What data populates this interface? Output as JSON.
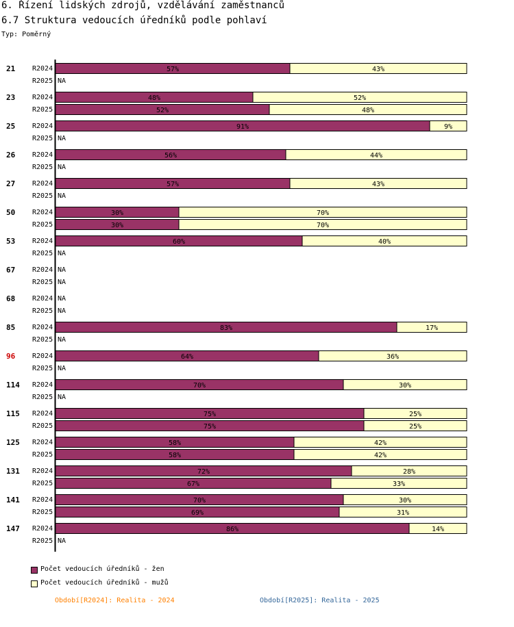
{
  "header": {
    "title": "6. Řízení lidských zdrojů, vzdělávání zaměstnanců",
    "subtitle": "6.7 Struktura vedoucích úředníků podle pohlaví",
    "type_label": "Typ: Poměrný"
  },
  "colors": {
    "women": "#993366",
    "men": "#ffffcc",
    "highlight": "#cc0000",
    "period_2024": "#ff8000",
    "period_2025": "#336699",
    "axis": "#000000"
  },
  "chart_data": {
    "type": "bar",
    "orientation": "horizontal",
    "stacked": true,
    "normalized": true,
    "title": "6.7 Struktura vedoucích úředníků podle pohlaví",
    "xlim": [
      0,
      100
    ],
    "na_label": "NA",
    "highlight_group": "96",
    "series_names": [
      "Počet vedoucích úředníků - žen",
      "Počet vedoucích úředníků - mužů"
    ],
    "groups": [
      {
        "id": "21",
        "rows": [
          {
            "period": "R2024",
            "values": [
              57,
              43
            ]
          },
          {
            "period": "R2025",
            "values": null
          }
        ]
      },
      {
        "id": "23",
        "rows": [
          {
            "period": "R2024",
            "values": [
              48,
              52
            ]
          },
          {
            "period": "R2025",
            "values": [
              52,
              48
            ]
          }
        ]
      },
      {
        "id": "25",
        "rows": [
          {
            "period": "R2024",
            "values": [
              91,
              9
            ]
          },
          {
            "period": "R2025",
            "values": null
          }
        ]
      },
      {
        "id": "26",
        "rows": [
          {
            "period": "R2024",
            "values": [
              56,
              44
            ]
          },
          {
            "period": "R2025",
            "values": null
          }
        ]
      },
      {
        "id": "27",
        "rows": [
          {
            "period": "R2024",
            "values": [
              57,
              43
            ]
          },
          {
            "period": "R2025",
            "values": null
          }
        ]
      },
      {
        "id": "50",
        "rows": [
          {
            "period": "R2024",
            "values": [
              30,
              70
            ]
          },
          {
            "period": "R2025",
            "values": [
              30,
              70
            ]
          }
        ]
      },
      {
        "id": "53",
        "rows": [
          {
            "period": "R2024",
            "values": [
              60,
              40
            ]
          },
          {
            "period": "R2025",
            "values": null
          }
        ]
      },
      {
        "id": "67",
        "rows": [
          {
            "period": "R2024",
            "values": null
          },
          {
            "period": "R2025",
            "values": null
          }
        ]
      },
      {
        "id": "68",
        "rows": [
          {
            "period": "R2024",
            "values": null
          },
          {
            "period": "R2025",
            "values": null
          }
        ]
      },
      {
        "id": "85",
        "rows": [
          {
            "period": "R2024",
            "values": [
              83,
              17
            ]
          },
          {
            "period": "R2025",
            "values": null
          }
        ]
      },
      {
        "id": "96",
        "rows": [
          {
            "period": "R2024",
            "values": [
              64,
              36
            ]
          },
          {
            "period": "R2025",
            "values": null
          }
        ]
      },
      {
        "id": "114",
        "rows": [
          {
            "period": "R2024",
            "values": [
              70,
              30
            ]
          },
          {
            "period": "R2025",
            "values": null
          }
        ]
      },
      {
        "id": "115",
        "rows": [
          {
            "period": "R2024",
            "values": [
              75,
              25
            ]
          },
          {
            "period": "R2025",
            "values": [
              75,
              25
            ]
          }
        ]
      },
      {
        "id": "125",
        "rows": [
          {
            "period": "R2024",
            "values": [
              58,
              42
            ]
          },
          {
            "period": "R2025",
            "values": [
              58,
              42
            ]
          }
        ]
      },
      {
        "id": "131",
        "rows": [
          {
            "period": "R2024",
            "values": [
              72,
              28
            ]
          },
          {
            "period": "R2025",
            "values": [
              67,
              33
            ]
          }
        ]
      },
      {
        "id": "141",
        "rows": [
          {
            "period": "R2024",
            "values": [
              70,
              30
            ]
          },
          {
            "period": "R2025",
            "values": [
              69,
              31
            ]
          }
        ]
      },
      {
        "id": "147",
        "rows": [
          {
            "period": "R2024",
            "values": [
              86,
              14
            ]
          },
          {
            "period": "R2025",
            "values": null
          }
        ]
      }
    ]
  },
  "legend": {
    "women": "Počet vedoucích úředníků - žen",
    "men": "Počet vedoucích úředníků - mužů"
  },
  "footer": {
    "period_2024": "Období[R2024]: Realita - 2024",
    "period_2025": "Období[R2025]: Realita - 2025"
  }
}
